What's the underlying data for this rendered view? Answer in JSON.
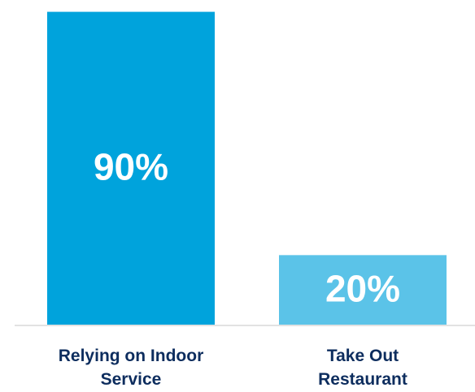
{
  "chart_data": {
    "type": "bar",
    "categories": [
      "Relying on Indoor Service",
      "Take Out Restaurant"
    ],
    "category_label_lines": [
      [
        "Relying on Indoor",
        "Service"
      ],
      [
        "Take Out",
        "Restaurant"
      ]
    ],
    "values": [
      90,
      20
    ],
    "value_labels": [
      "90%",
      "20%"
    ],
    "title": "",
    "xlabel": "",
    "ylabel": "",
    "ylim": [
      0,
      92
    ],
    "grid": false,
    "legend": "none",
    "colors": [
      "#00a3dc",
      "#5bc3e8"
    ],
    "label_color": "#0d2d5e",
    "axis_color": "#d9d9d9"
  }
}
